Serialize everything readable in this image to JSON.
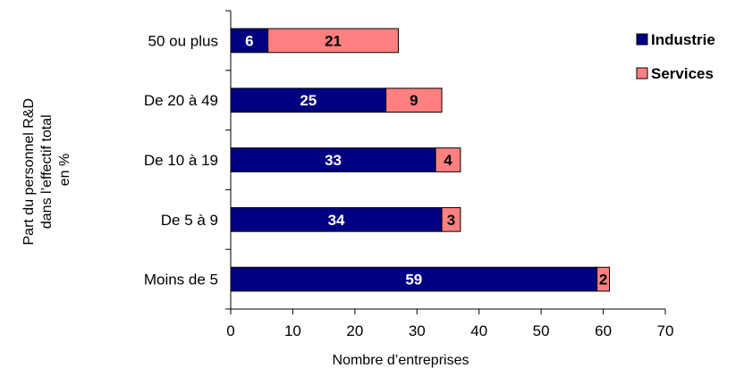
{
  "chart_data": {
    "type": "bar",
    "orientation": "horizontal",
    "stacked": true,
    "title": "",
    "xlabel": "Nombre d’entreprises",
    "ylabel": [
      "Part du personnel R&D",
      "dans l’effectif total",
      "en %"
    ],
    "categories": [
      "50 ou plus",
      "De 20 à 49",
      "De 10 à 19",
      "De 5 à 9",
      "Moins de 5"
    ],
    "series": [
      {
        "name": "Industrie",
        "color": "#000080",
        "label_color": "#ffffff",
        "values": [
          6,
          25,
          33,
          34,
          59
        ]
      },
      {
        "name": "Services",
        "color": "#ff8080",
        "label_color": "#000000",
        "values": [
          21,
          9,
          4,
          3,
          2
        ]
      }
    ],
    "xlim": [
      0,
      70
    ],
    "xticks": [
      0,
      10,
      20,
      30,
      40,
      50,
      60,
      70
    ],
    "grid": false,
    "legend_position": "top-right"
  }
}
